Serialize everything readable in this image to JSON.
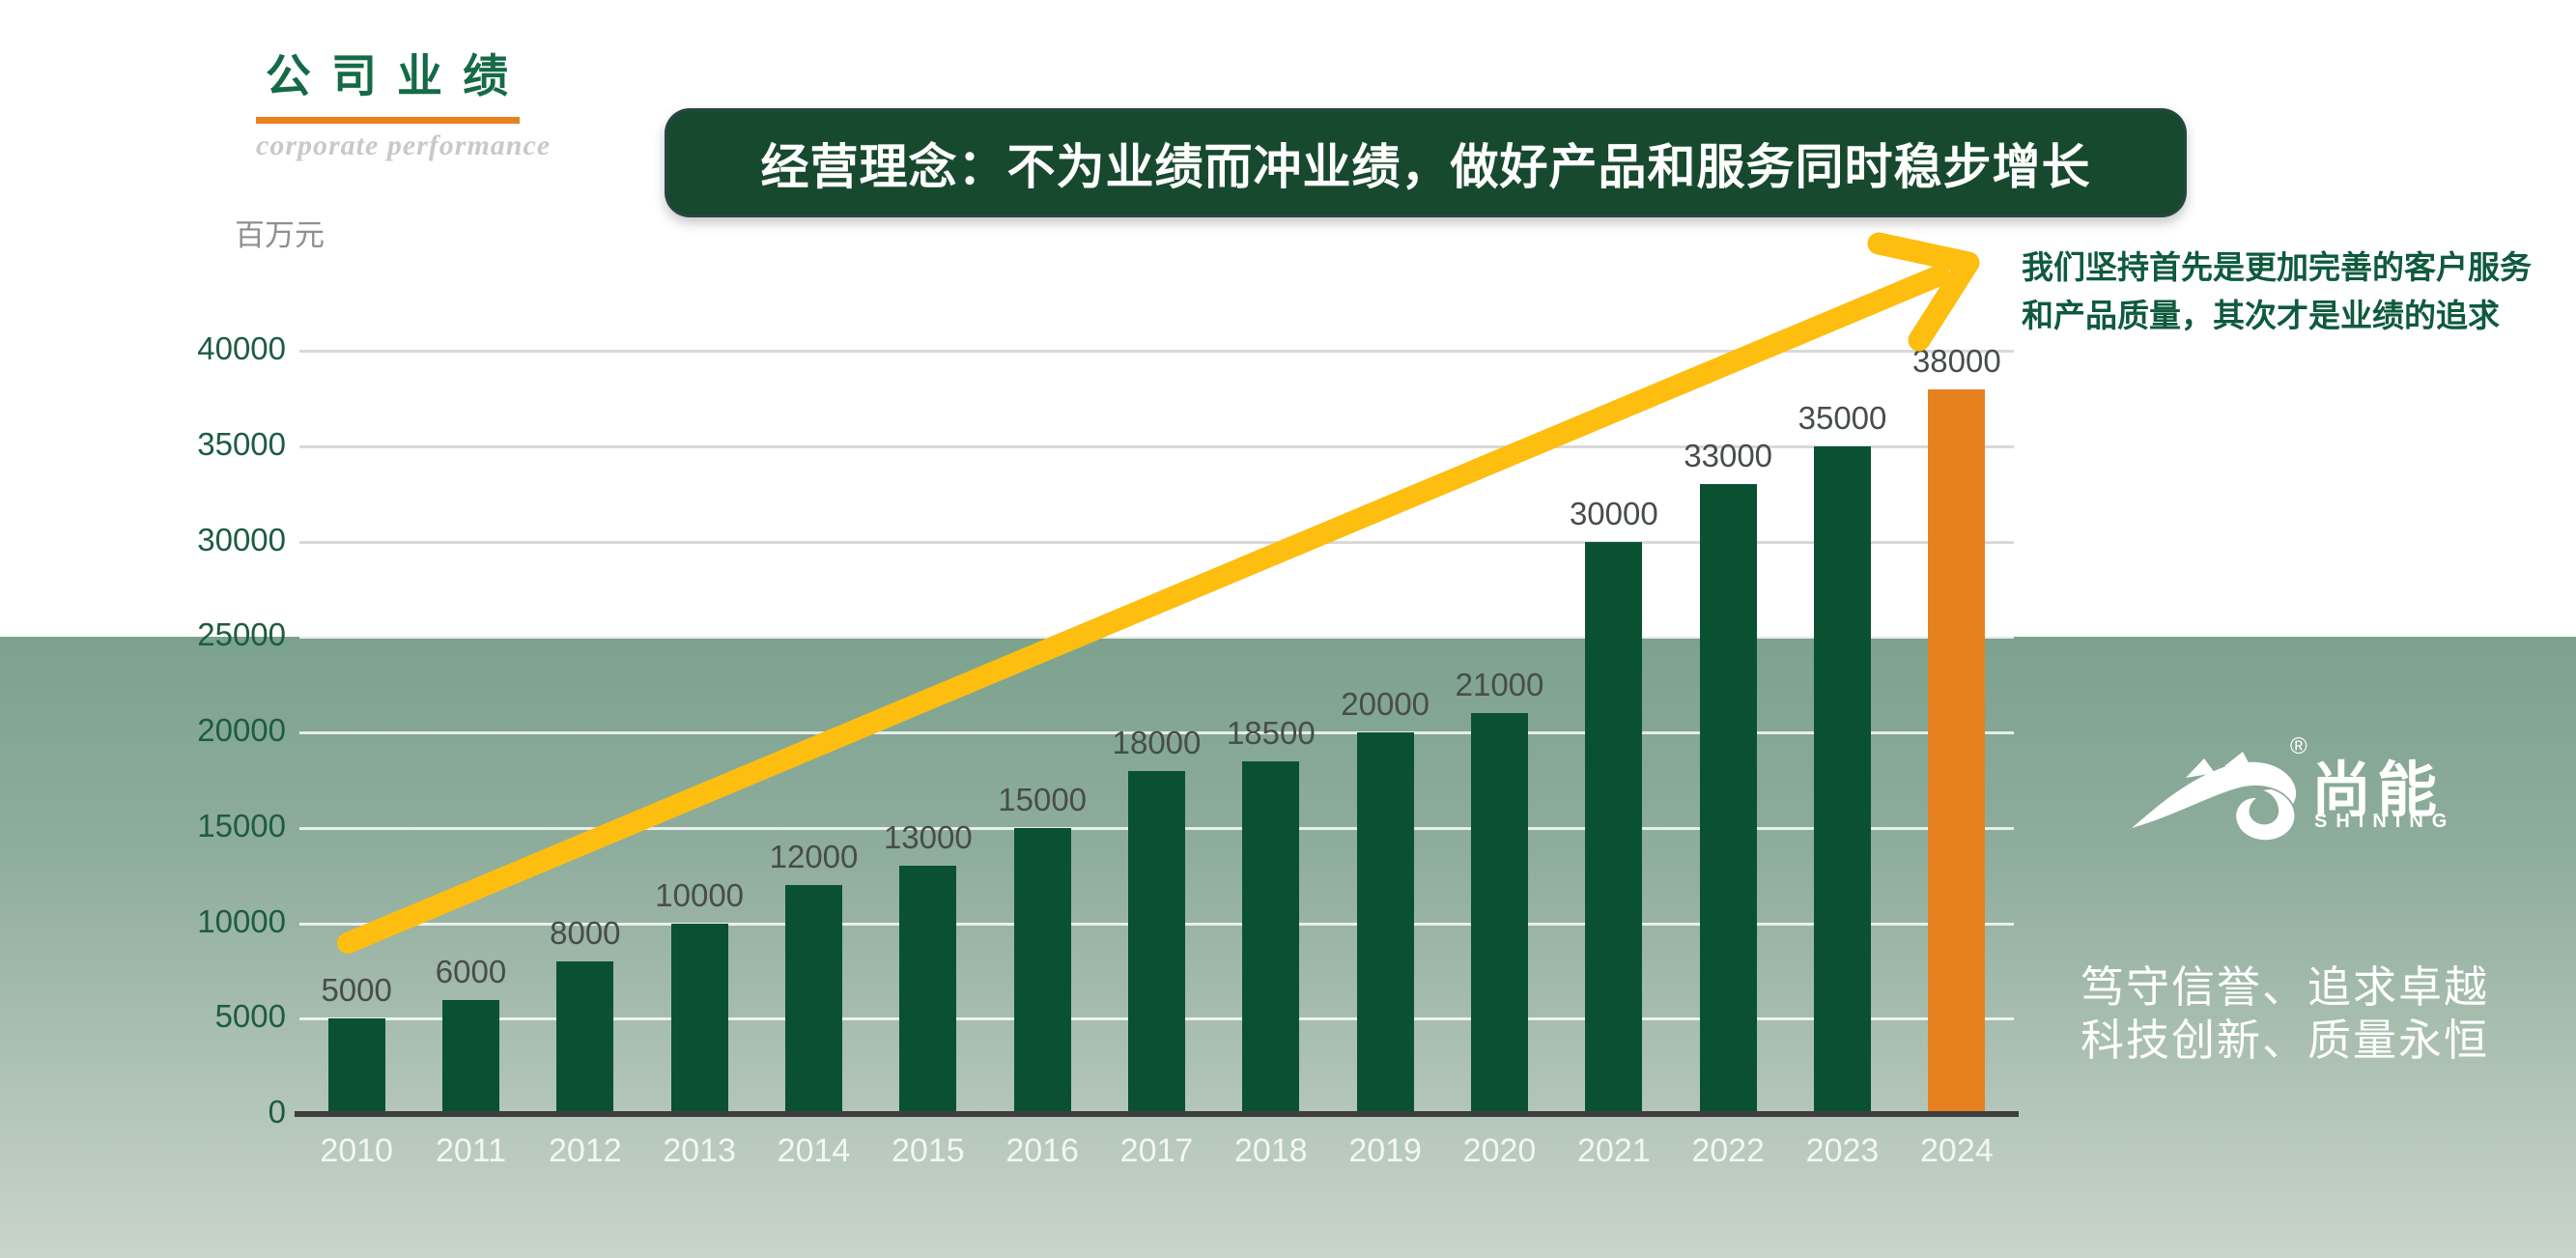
{
  "header": {
    "title": "公 司 业 绩",
    "subtitle": "corporate performance",
    "unit_label": "百万元"
  },
  "banner": {
    "text": "经营理念：不为业绩而冲业绩，做好产品和服务同时稳步增长",
    "bg_color": "#17492f",
    "text_color": "#ffffff"
  },
  "side_note": {
    "line1": "我们坚持首先是更加完善的客户服务",
    "line2": "和产品质量，其次才是业绩的追求"
  },
  "brand": {
    "registered_mark": "®",
    "name": "尚能",
    "latin": "SHINING"
  },
  "motto": {
    "line1": "笃守信誉、追求卓越",
    "line2": "科技创新、质量永恒"
  },
  "chart_data": {
    "type": "bar",
    "title": "公司业绩",
    "ylabel": "百万元",
    "categories": [
      "2010",
      "2011",
      "2012",
      "2013",
      "2014",
      "2015",
      "2016",
      "2017",
      "2018",
      "2019",
      "2020",
      "2021",
      "2022",
      "2023",
      "2024"
    ],
    "values": [
      5000,
      6000,
      8000,
      10000,
      12000,
      13000,
      15000,
      18000,
      18500,
      20000,
      21000,
      30000,
      33000,
      35000,
      38000
    ],
    "ylim": [
      0,
      40000
    ],
    "ytick_step": 5000,
    "ytick_labels": [
      "0",
      "5000",
      "10000",
      "15000",
      "20000",
      "25000",
      "30000",
      "35000",
      "40000"
    ],
    "grid": true,
    "data_labels": true,
    "bar_color": "#0a5132",
    "highlight_index": 14,
    "highlight_color": "#e5821f",
    "gridline_color_on_white": "#d9d9d9",
    "gridline_color_on_band": "rgba(255,255,255,0.8)",
    "axis_color": "#3e3e3e",
    "trend_arrow_color": "#fdbe10",
    "legend": null
  }
}
